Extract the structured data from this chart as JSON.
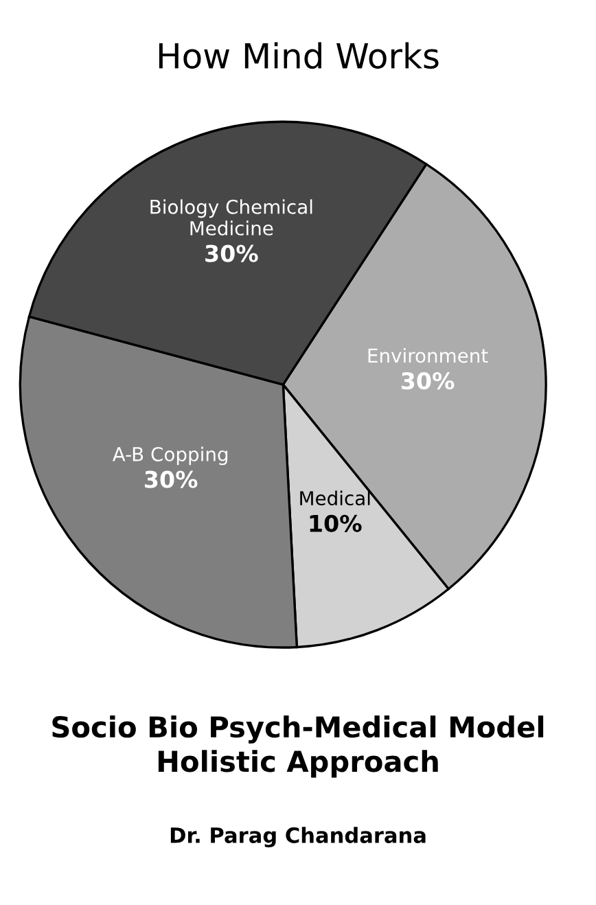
{
  "chart_data": {
    "type": "pie",
    "title": "How Mind Works",
    "categories": [
      "Environment",
      "Medical",
      "A-B Copping",
      "Biology Chemical\nMedicine"
    ],
    "values": [
      30,
      10,
      30,
      30
    ],
    "value_labels": [
      "30%",
      "10%",
      "30%",
      "30%"
    ],
    "colors": [
      "#acacac",
      "#d2d2d2",
      "#7f7f7f",
      "#474747"
    ],
    "annotations": [
      "Socio Bio Psych-Medical Model\nHolistic Approach",
      "Dr. Parag Chandarana"
    ]
  }
}
